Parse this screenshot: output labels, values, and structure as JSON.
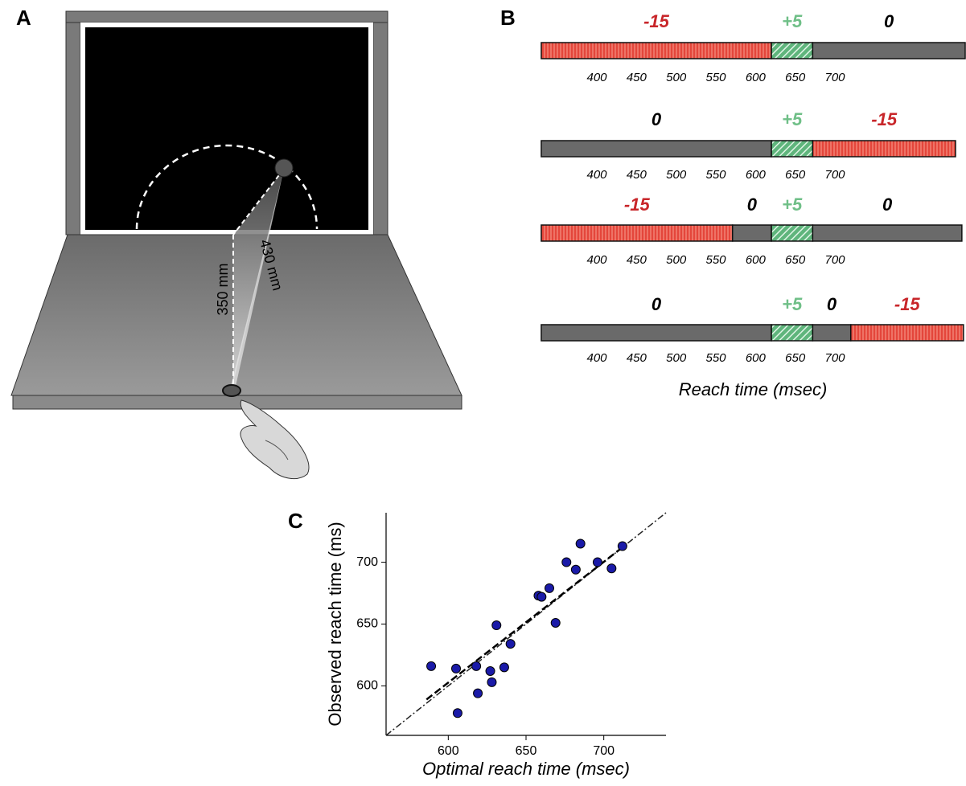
{
  "panel_labels": [
    "A",
    "B",
    "C"
  ],
  "panel_a": {
    "distances": [
      "350 mm",
      "430 mm"
    ]
  },
  "panel_b": {
    "xlabel": "Reach time (msec)",
    "ticks": [
      400,
      450,
      500,
      550,
      600,
      650,
      700
    ],
    "rows": [
      {
        "segments": [
          {
            "start": 330,
            "end": 620,
            "label": "-15",
            "color": "#e4463b",
            "label_color": "#c8262a",
            "pattern": "stripes"
          },
          {
            "start": 620,
            "end": 672,
            "label": "+5",
            "color": "#7ecb98",
            "label_color": "#6fbf87",
            "pattern": "hatch"
          },
          {
            "start": 672,
            "end": 865,
            "label": "0",
            "color": "#6a6a6a",
            "label_color": "#000000",
            "pattern": "none"
          }
        ]
      },
      {
        "segments": [
          {
            "start": 330,
            "end": 620,
            "label": "0",
            "color": "#6a6a6a",
            "label_color": "#000000",
            "pattern": "none"
          },
          {
            "start": 620,
            "end": 672,
            "label": "+5",
            "color": "#7ecb98",
            "label_color": "#6fbf87",
            "pattern": "hatch"
          },
          {
            "start": 672,
            "end": 852,
            "label": "-15",
            "color": "#e4463b",
            "label_color": "#c8262a",
            "pattern": "stripes"
          }
        ]
      },
      {
        "segments": [
          {
            "start": 330,
            "end": 571,
            "label": "-15",
            "color": "#e4463b",
            "label_color": "#c8262a",
            "pattern": "stripes"
          },
          {
            "start": 571,
            "end": 620,
            "label": "0",
            "color": "#6a6a6a",
            "label_color": "#000000",
            "pattern": "none"
          },
          {
            "start": 620,
            "end": 672,
            "label": "+5",
            "color": "#7ecb98",
            "label_color": "#6fbf87",
            "pattern": "hatch"
          },
          {
            "start": 672,
            "end": 860,
            "label": "0",
            "color": "#6a6a6a",
            "label_color": "#000000",
            "pattern": "none"
          }
        ]
      },
      {
        "segments": [
          {
            "start": 330,
            "end": 620,
            "label": "0",
            "color": "#6a6a6a",
            "label_color": "#000000",
            "pattern": "none"
          },
          {
            "start": 620,
            "end": 672,
            "label": "+5",
            "color": "#7ecb98",
            "label_color": "#6fbf87",
            "pattern": "hatch"
          },
          {
            "start": 672,
            "end": 720,
            "label": "0",
            "color": "#6a6a6a",
            "label_color": "#000000",
            "pattern": "none"
          },
          {
            "start": 720,
            "end": 862,
            "label": "-15",
            "color": "#e4463b",
            "label_color": "#c8262a",
            "pattern": "stripes"
          }
        ]
      }
    ]
  },
  "chart_data": {
    "type": "scatter",
    "xlabel": "Optimal reach time (msec)",
    "ylabel": "Observed reach time (ms)",
    "x": [
      589,
      605,
      618,
      627,
      628,
      619,
      606,
      636,
      640,
      631,
      669,
      658,
      660,
      665,
      676,
      682,
      685,
      696,
      705,
      712
    ],
    "y": [
      616,
      614,
      616,
      612,
      603,
      594,
      578,
      615,
      634,
      649,
      651,
      673,
      672,
      679,
      700,
      694,
      715,
      700,
      695,
      713
    ],
    "color": "#1a1aa8",
    "xlim": [
      560,
      740
    ],
    "ylim": [
      560,
      740
    ],
    "xticks": [
      600,
      650,
      700
    ],
    "yticks": [
      600,
      650,
      700
    ],
    "fit_line": {
      "x": [
        586,
        712
      ],
      "y": [
        589,
        712
      ]
    }
  }
}
